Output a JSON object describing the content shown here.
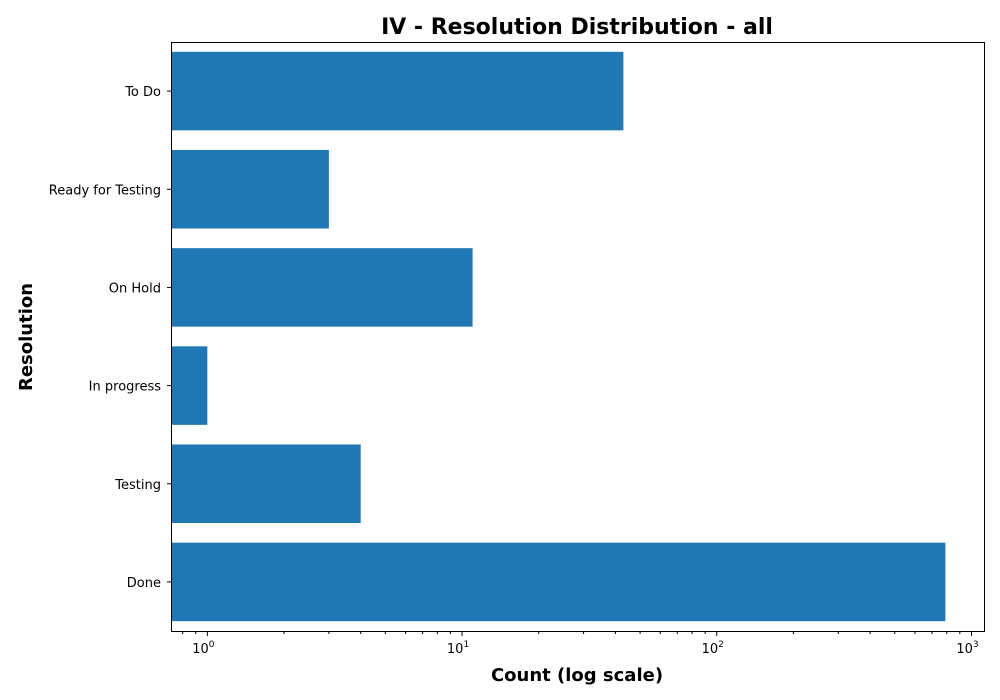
{
  "chart_data": {
    "type": "bar",
    "orientation": "horizontal",
    "title": "IV - Resolution Distribution - all",
    "xlabel": "Count (log scale)",
    "ylabel": "Resolution",
    "x_scale": "log",
    "xlim": [
      0.72,
      1120
    ],
    "x_ticks": [
      {
        "value": 1,
        "base": "10",
        "exponent": "0"
      },
      {
        "value": 10,
        "base": "10",
        "exponent": "1"
      },
      {
        "value": 100,
        "base": "10",
        "exponent": "2"
      },
      {
        "value": 1000,
        "base": "10",
        "exponent": "3"
      }
    ],
    "categories": [
      "To Do",
      "Ready for Testing",
      "On Hold",
      "In progress",
      "Testing",
      "Done"
    ],
    "values": [
      43,
      3,
      11,
      1,
      4,
      790
    ],
    "bar_color": "#1f77b4",
    "grid": false,
    "legend": "none"
  }
}
